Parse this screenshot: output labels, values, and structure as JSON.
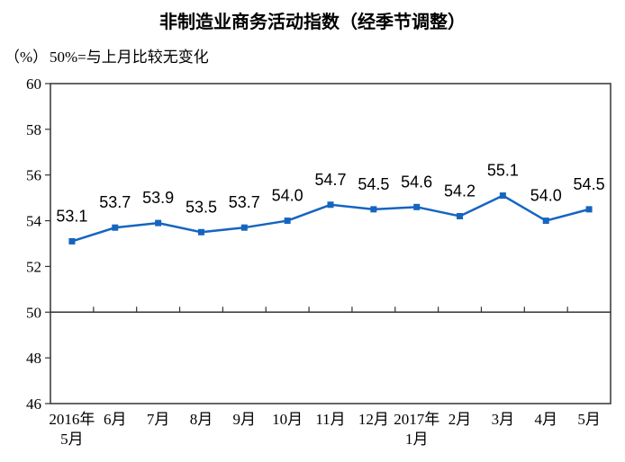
{
  "chart_data": {
    "type": "line",
    "title": "非制造业商务活动指数（经季节调整）",
    "subtitle": "50%=与上月比较无变化",
    "unit_label": "（%）",
    "categories": [
      "2016年\n5月",
      "6月",
      "7月",
      "8月",
      "9月",
      "10月",
      "11月",
      "12月",
      "2017年\n1月",
      "2月",
      "3月",
      "4月",
      "5月"
    ],
    "values": [
      53.1,
      53.7,
      53.9,
      53.5,
      53.7,
      54.0,
      54.7,
      54.5,
      54.6,
      54.2,
      55.1,
      54.0,
      54.5
    ],
    "ylim": [
      46,
      60
    ],
    "ytick_step": 2,
    "baseline": 50,
    "line_color": "#1565C0",
    "axis_color": "#333333",
    "text_color": "#000000",
    "marker": "square",
    "grid": false,
    "legend": false,
    "xlabel": "",
    "ylabel": "（%）"
  }
}
